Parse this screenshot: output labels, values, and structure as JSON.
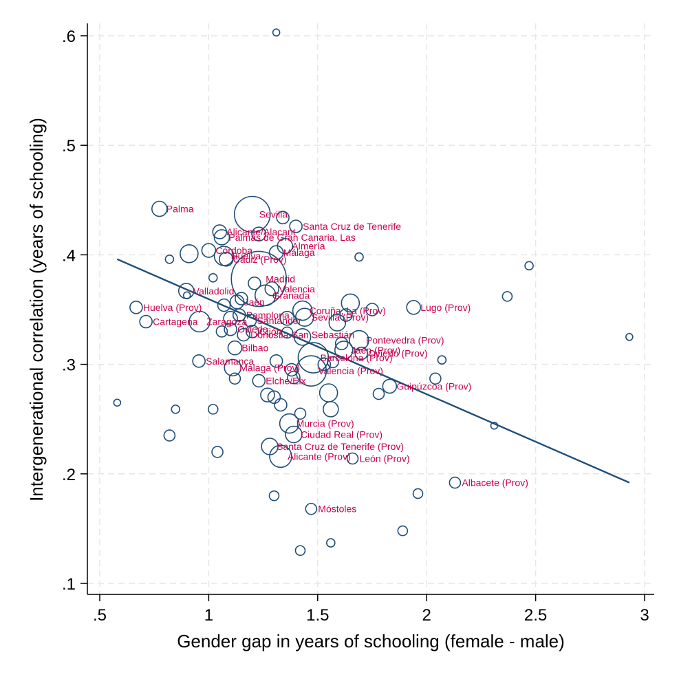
{
  "chart_data": {
    "type": "scatter",
    "title": "",
    "xlabel": "Gender gap in years of schooling (female - male)",
    "ylabel": "Intergenerational correlation (years of schooling)",
    "xlim": [
      0.5,
      3.0
    ],
    "ylim": [
      0.1,
      0.6
    ],
    "xticks": [
      ".5",
      "1",
      "1.5",
      "2",
      "2.5",
      "3"
    ],
    "xtick_values": [
      0.5,
      1.0,
      1.5,
      2.0,
      2.5,
      3.0
    ],
    "yticks": [
      ".1",
      ".2",
      ".3",
      ".4",
      ".5",
      ".6"
    ],
    "ytick_values": [
      0.1,
      0.2,
      0.3,
      0.4,
      0.5,
      0.6
    ],
    "grid": true,
    "fit_line": {
      "x": [
        0.58,
        2.93
      ],
      "y": [
        0.396,
        0.192
      ]
    },
    "points": [
      {
        "x": 0.774,
        "y": 0.442,
        "s": 11,
        "label": "Palma"
      },
      {
        "x": 1.2,
        "y": 0.437,
        "s": 26,
        "label": "Sevilla"
      },
      {
        "x": 1.4,
        "y": 0.426,
        "s": 9,
        "label": "Santa Cruz de Tenerife"
      },
      {
        "x": 1.05,
        "y": 0.421,
        "s": 10,
        "label": "Alicante/Alacant"
      },
      {
        "x": 1.06,
        "y": 0.416,
        "s": 11,
        "label": "Palmas de Gran Canaria, Las"
      },
      {
        "x": 1.35,
        "y": 0.408,
        "s": 11,
        "label": "Almería"
      },
      {
        "x": 1.31,
        "y": 0.402,
        "s": 10,
        "label": "Málaga"
      },
      {
        "x": 1.07,
        "y": 0.399,
        "s": 14,
        "label": "Huelva"
      },
      {
        "x": 1.0,
        "y": 0.404,
        "s": 10,
        "label": "Córdoba"
      },
      {
        "x": 1.08,
        "y": 0.396,
        "s": 10,
        "label": "Cádiz (Prov)"
      },
      {
        "x": 1.23,
        "y": 0.378,
        "s": 40,
        "label": "Madrid"
      },
      {
        "x": 1.29,
        "y": 0.369,
        "s": 10,
        "label": "Valencia"
      },
      {
        "x": 1.26,
        "y": 0.363,
        "s": 15,
        "label": "Granada"
      },
      {
        "x": 1.13,
        "y": 0.357,
        "s": 10,
        "label": "Jaén"
      },
      {
        "x": 0.897,
        "y": 0.367,
        "s": 11,
        "label": "Valladolid"
      },
      {
        "x": 0.667,
        "y": 0.352,
        "s": 9,
        "label": "Huelva (Prov)"
      },
      {
        "x": 1.43,
        "y": 0.349,
        "s": 14,
        "label": "Coruña, La (Prov)"
      },
      {
        "x": 1.44,
        "y": 0.343,
        "s": 13,
        "label": "Sevilla (Prov)"
      },
      {
        "x": 1.94,
        "y": 0.352,
        "s": 10,
        "label": "Lugo (Prov)"
      },
      {
        "x": 1.14,
        "y": 0.345,
        "s": 9,
        "label": "Pamplona"
      },
      {
        "x": 1.19,
        "y": 0.34,
        "s": 9,
        "label": "Santander"
      },
      {
        "x": 0.712,
        "y": 0.339,
        "s": 9,
        "label": "Cartagena"
      },
      {
        "x": 0.958,
        "y": 0.339,
        "s": 15,
        "label": "Zaragoza"
      },
      {
        "x": 1.1,
        "y": 0.332,
        "s": 9,
        "label": "Oviedo"
      },
      {
        "x": 1.2,
        "y": 0.33,
        "s": 9,
        "label": "Gijón"
      },
      {
        "x": 1.16,
        "y": 0.327,
        "s": 9,
        "label": "Donostia-San Sebastián"
      },
      {
        "x": 1.69,
        "y": 0.322,
        "s": 14,
        "label": "Pontevedra (Prov)"
      },
      {
        "x": 1.12,
        "y": 0.315,
        "s": 10,
        "label": "Bilbao"
      },
      {
        "x": 1.62,
        "y": 0.313,
        "s": 13,
        "label": "Jaén (Prov)"
      },
      {
        "x": 1.7,
        "y": 0.31,
        "s": 9,
        "label": "Oviedo (Prov)"
      },
      {
        "x": 1.48,
        "y": 0.306,
        "s": 22,
        "label": "Barcelona (Prov)"
      },
      {
        "x": 0.955,
        "y": 0.303,
        "s": 9,
        "label": "Salamanca"
      },
      {
        "x": 1.11,
        "y": 0.297,
        "s": 12,
        "label": "Málaga (Prov)"
      },
      {
        "x": 1.47,
        "y": 0.294,
        "s": 22,
        "label": "Valencia (Prov)"
      },
      {
        "x": 1.83,
        "y": 0.28,
        "s": 10,
        "label": "Guipúzcoa (Prov)"
      },
      {
        "x": 1.23,
        "y": 0.285,
        "s": 9,
        "label": "Elche/Elx"
      },
      {
        "x": 1.37,
        "y": 0.246,
        "s": 14,
        "label": "Murcia (Prov)"
      },
      {
        "x": 1.39,
        "y": 0.236,
        "s": 12,
        "label": "Ciudad Real (Prov)"
      },
      {
        "x": 1.28,
        "y": 0.225,
        "s": 12,
        "label": "Santa Cruz de Tenerife (Prov)"
      },
      {
        "x": 1.33,
        "y": 0.216,
        "s": 16,
        "label": "Alicante (Prov)"
      },
      {
        "x": 1.66,
        "y": 0.214,
        "s": 8,
        "label": "León (Prov)"
      },
      {
        "x": 2.13,
        "y": 0.192,
        "s": 8,
        "label": "Albacete (Prov)"
      },
      {
        "x": 1.47,
        "y": 0.168,
        "s": 8,
        "label": "Móstoles"
      },
      {
        "x": 1.31,
        "y": 0.603,
        "s": 5,
        "label": ""
      },
      {
        "x": 0.82,
        "y": 0.396,
        "s": 6,
        "label": ""
      },
      {
        "x": 1.02,
        "y": 0.379,
        "s": 6,
        "label": ""
      },
      {
        "x": 0.9,
        "y": 0.363,
        "s": 5,
        "label": ""
      },
      {
        "x": 1.69,
        "y": 0.398,
        "s": 6,
        "label": ""
      },
      {
        "x": 2.47,
        "y": 0.39,
        "s": 6,
        "label": ""
      },
      {
        "x": 2.37,
        "y": 0.362,
        "s": 7,
        "label": ""
      },
      {
        "x": 2.93,
        "y": 0.325,
        "s": 5,
        "label": ""
      },
      {
        "x": 2.07,
        "y": 0.304,
        "s": 6,
        "label": ""
      },
      {
        "x": 2.04,
        "y": 0.287,
        "s": 8,
        "label": ""
      },
      {
        "x": 2.31,
        "y": 0.244,
        "s": 5,
        "label": ""
      },
      {
        "x": 1.96,
        "y": 0.182,
        "s": 7,
        "label": ""
      },
      {
        "x": 1.89,
        "y": 0.148,
        "s": 7,
        "label": ""
      },
      {
        "x": 1.56,
        "y": 0.137,
        "s": 6,
        "label": ""
      },
      {
        "x": 1.42,
        "y": 0.13,
        "s": 7,
        "label": ""
      },
      {
        "x": 1.3,
        "y": 0.18,
        "s": 7,
        "label": ""
      },
      {
        "x": 1.04,
        "y": 0.22,
        "s": 8,
        "label": ""
      },
      {
        "x": 0.58,
        "y": 0.265,
        "s": 5,
        "label": ""
      },
      {
        "x": 0.848,
        "y": 0.259,
        "s": 6,
        "label": ""
      },
      {
        "x": 1.02,
        "y": 0.259,
        "s": 7,
        "label": ""
      },
      {
        "x": 0.82,
        "y": 0.235,
        "s": 8,
        "label": ""
      },
      {
        "x": 1.56,
        "y": 0.259,
        "s": 11,
        "label": ""
      },
      {
        "x": 1.55,
        "y": 0.274,
        "s": 13,
        "label": ""
      },
      {
        "x": 1.78,
        "y": 0.273,
        "s": 8,
        "label": ""
      },
      {
        "x": 1.27,
        "y": 0.272,
        "s": 10,
        "label": ""
      },
      {
        "x": 1.3,
        "y": 0.27,
        "s": 9,
        "label": ""
      },
      {
        "x": 1.33,
        "y": 0.263,
        "s": 9,
        "label": ""
      },
      {
        "x": 1.42,
        "y": 0.255,
        "s": 8,
        "label": ""
      },
      {
        "x": 1.65,
        "y": 0.356,
        "s": 13,
        "label": ""
      },
      {
        "x": 1.75,
        "y": 0.35,
        "s": 9,
        "label": ""
      },
      {
        "x": 1.63,
        "y": 0.345,
        "s": 9,
        "label": ""
      },
      {
        "x": 1.59,
        "y": 0.338,
        "s": 12,
        "label": ""
      },
      {
        "x": 1.36,
        "y": 0.342,
        "s": 10,
        "label": ""
      },
      {
        "x": 1.21,
        "y": 0.374,
        "s": 9,
        "label": ""
      },
      {
        "x": 1.1,
        "y": 0.342,
        "s": 10,
        "label": ""
      },
      {
        "x": 1.06,
        "y": 0.33,
        "s": 8,
        "label": ""
      },
      {
        "x": 1.34,
        "y": 0.434,
        "s": 9,
        "label": ""
      },
      {
        "x": 1.23,
        "y": 0.419,
        "s": 10,
        "label": ""
      },
      {
        "x": 0.91,
        "y": 0.401,
        "s": 13,
        "label": ""
      },
      {
        "x": 1.07,
        "y": 0.354,
        "s": 9,
        "label": ""
      },
      {
        "x": 1.15,
        "y": 0.36,
        "s": 9,
        "label": ""
      },
      {
        "x": 1.43,
        "y": 0.325,
        "s": 12,
        "label": ""
      },
      {
        "x": 1.36,
        "y": 0.329,
        "s": 8,
        "label": ""
      },
      {
        "x": 1.53,
        "y": 0.3,
        "s": 9,
        "label": ""
      },
      {
        "x": 1.57,
        "y": 0.302,
        "s": 8,
        "label": ""
      },
      {
        "x": 1.61,
        "y": 0.319,
        "s": 9,
        "label": ""
      },
      {
        "x": 1.38,
        "y": 0.295,
        "s": 9,
        "label": ""
      },
      {
        "x": 1.39,
        "y": 0.288,
        "s": 9,
        "label": ""
      },
      {
        "x": 1.31,
        "y": 0.303,
        "s": 9,
        "label": ""
      },
      {
        "x": 1.12,
        "y": 0.287,
        "s": 8,
        "label": ""
      }
    ]
  }
}
